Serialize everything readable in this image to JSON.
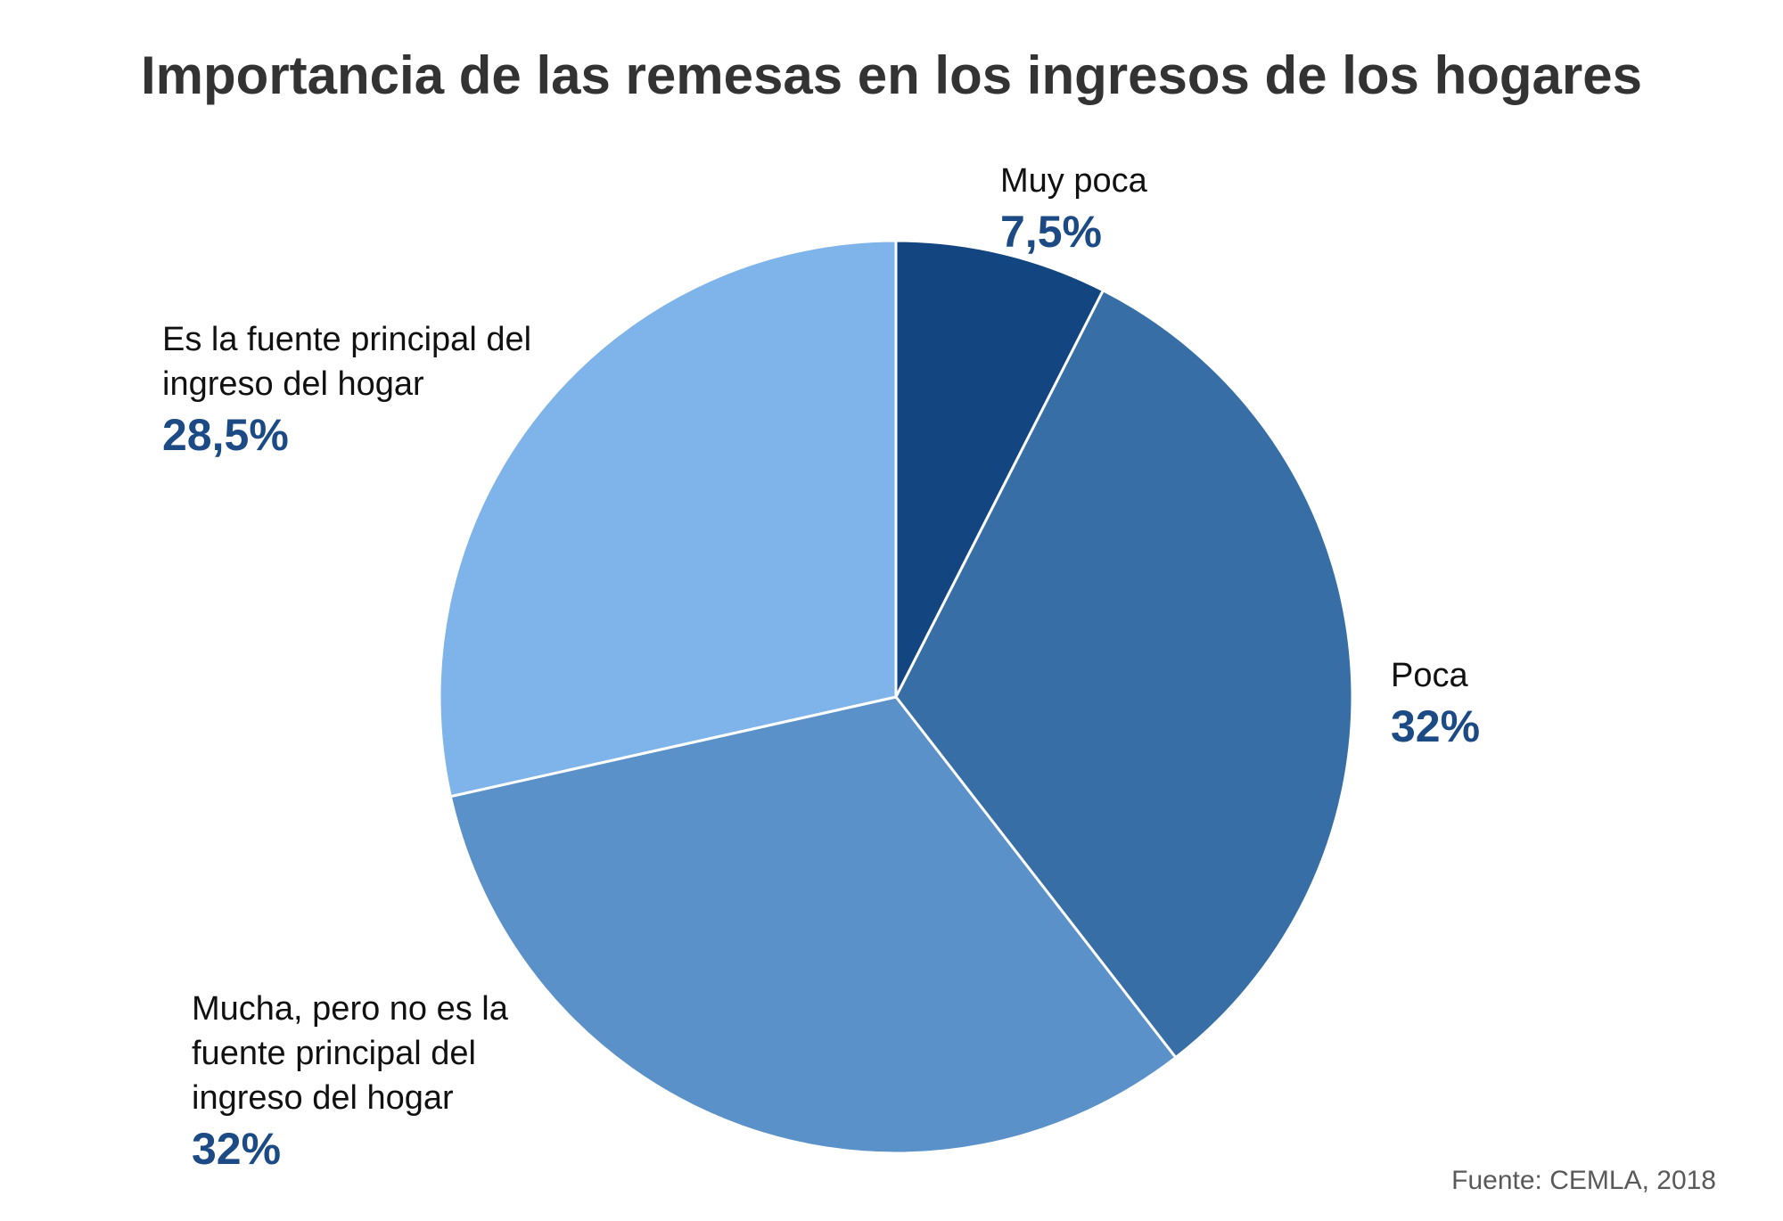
{
  "chart_data": {
    "type": "pie",
    "title": "Importancia de las remesas en los ingresos de los hogares",
    "slices": [
      {
        "label": "Muy poca",
        "value_label": "7,5%",
        "value": 7.5,
        "color": "#134680"
      },
      {
        "label": "Poca",
        "value_label": "32%",
        "value": 32,
        "color": "#366ea5"
      },
      {
        "label": "Mucha, pero no es la fuente principal del ingreso del hogar",
        "value_label": "32%",
        "value": 32,
        "color": "#5a91c8"
      },
      {
        "label": "Es la fuente principal del ingreso del hogar",
        "value_label": "28,5%",
        "value": 28.5,
        "color": "#7eb4ea"
      }
    ],
    "source": "Fuente: CEMLA, 2018",
    "value_color": "#1b4a85"
  }
}
